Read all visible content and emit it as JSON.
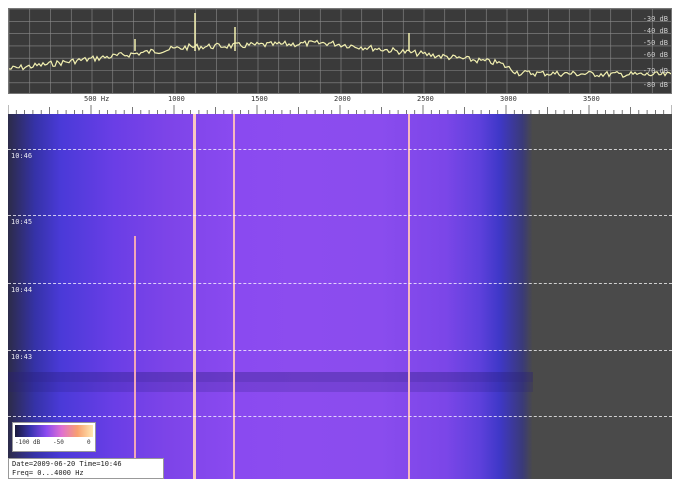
{
  "spectrum": {
    "db_labels": [
      "-30 dB",
      "-40 dB",
      "-50 dB",
      "-60 dB",
      "-70 dB",
      "-80 dB"
    ]
  },
  "ruler": {
    "freq_labels": [
      "500 Hz",
      "1000",
      "1500",
      "2000",
      "2500",
      "3000",
      "3500"
    ]
  },
  "waterfall": {
    "time_labels": [
      "10:46",
      "10:45",
      "10:44",
      "10:43"
    ]
  },
  "color_scale": {
    "labels": [
      "-100 dB",
      "-50",
      "0"
    ]
  },
  "info": {
    "line1": "Date=2009-06-20 Time=10:46",
    "line2": "Freq= 0...4000 Hz"
  },
  "colors": {
    "trace": "#f2f0b0",
    "spectrum_bg": "#3a3a3a",
    "waterfall_purple": "#8a4af0",
    "waterfall_blue": "#3f38c8",
    "signal_line": "#f4c0b8"
  }
}
